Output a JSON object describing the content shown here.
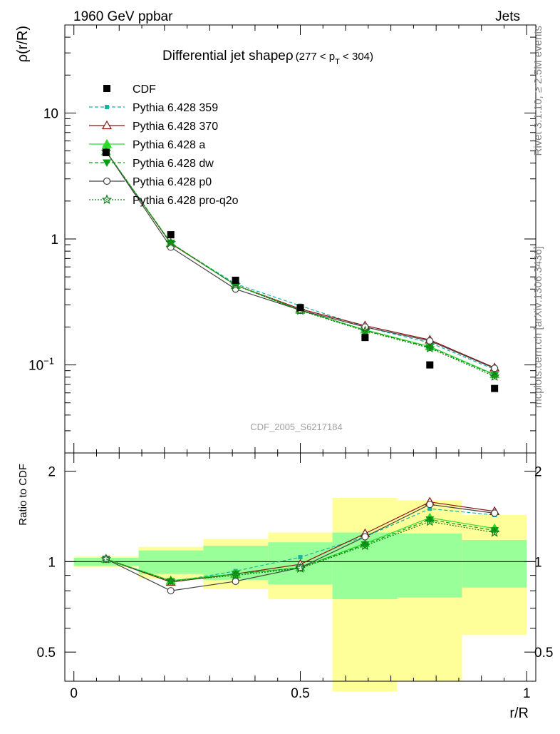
{
  "header": {
    "left": "1960 GeV ppbar",
    "right": "Jets"
  },
  "side_labels": {
    "rivet": "Rivet 3.1.10, ≥ 2.5M events",
    "mcplots": "mcplots.cern.ch [arXiv:1306.3436]"
  },
  "chart_data": {
    "type": "line",
    "title": "Differential jet shapeρ",
    "title_range": "(277 < p",
    "title_sub": "T",
    "title_range_end": " < 304)",
    "watermark": "CDF_2005_S6217184",
    "xlabel": "r/R",
    "ylabel_top": "ρ(r/R)",
    "ylabel_bottom": "Ratio to CDF",
    "xlim": [
      -0.02,
      1.02
    ],
    "ylim_top": [
      0.02,
      50
    ],
    "ylim_bottom": [
      0.4,
      2.3
    ],
    "yscale": "log",
    "x_ticks": [
      {
        "v": 0,
        "label": "0"
      },
      {
        "v": 0.5,
        "label": "0.5"
      },
      {
        "v": 1,
        "label": "1"
      }
    ],
    "y_ticks_top": [
      {
        "v": 10,
        "label": "10"
      },
      {
        "v": 1,
        "label": "1"
      },
      {
        "v": 0.1,
        "label": "10",
        "sup": "−1"
      }
    ],
    "y_ticks_bottom": [
      {
        "v": 2,
        "label": "2"
      },
      {
        "v": 1,
        "label": "1"
      },
      {
        "v": 0.5,
        "label": "0.5"
      }
    ],
    "x": [
      0.071,
      0.214,
      0.357,
      0.5,
      0.643,
      0.786,
      0.929
    ],
    "bins": [
      [
        0.0,
        0.143
      ],
      [
        0.143,
        0.286
      ],
      [
        0.286,
        0.429
      ],
      [
        0.429,
        0.571
      ],
      [
        0.571,
        0.714
      ],
      [
        0.714,
        0.857
      ],
      [
        0.857,
        1.0
      ]
    ],
    "band_green": [
      [
        0.97,
        1.03
      ],
      [
        0.91,
        1.09
      ],
      [
        0.87,
        1.13
      ],
      [
        0.84,
        1.16
      ],
      [
        0.75,
        1.25
      ],
      [
        0.76,
        1.24
      ],
      [
        0.82,
        1.18
      ]
    ],
    "band_yellow": [
      [
        0.96,
        1.04
      ],
      [
        0.88,
        1.12
      ],
      [
        0.81,
        1.19
      ],
      [
        0.75,
        1.25
      ],
      [
        0.37,
        1.63
      ],
      [
        0.4,
        1.6
      ],
      [
        0.57,
        1.43
      ]
    ],
    "data": {
      "name": "CDF",
      "values": [
        4.85,
        1.08,
        0.47,
        0.285,
        0.165,
        0.1,
        0.065
      ]
    },
    "series": [
      {
        "name": "Pythia 6.428 359",
        "color": "#17b4a0",
        "dash": "5,3",
        "marker": "square",
        "values": [
          4.95,
          0.92,
          0.44,
          0.295,
          0.2,
          0.15,
          0.092
        ],
        "ratio": [
          1.02,
          0.855,
          0.93,
          1.035,
          1.21,
          1.5,
          1.43
        ]
      },
      {
        "name": "Pythia 6.428 370",
        "color": "#8b1010",
        "dash": "",
        "marker": "triangle-open",
        "values": [
          4.95,
          0.92,
          0.43,
          0.278,
          0.205,
          0.158,
          0.095
        ],
        "ratio": [
          1.02,
          0.855,
          0.91,
          0.98,
          1.24,
          1.58,
          1.47
        ]
      },
      {
        "name": "Pythia 6.428 a",
        "color": "#2bdc2b",
        "dash": "",
        "marker": "triangle",
        "values": [
          4.95,
          0.93,
          0.43,
          0.272,
          0.19,
          0.14,
          0.084
        ],
        "ratio": [
          1.02,
          0.865,
          0.91,
          0.955,
          1.15,
          1.4,
          1.29
        ]
      },
      {
        "name": "Pythia 6.428 dw",
        "color": "#0aa014",
        "dash": "5,3",
        "marker": "triangle-down",
        "values": [
          4.95,
          0.93,
          0.43,
          0.272,
          0.188,
          0.138,
          0.083
        ],
        "ratio": [
          1.02,
          0.86,
          0.91,
          0.955,
          1.14,
          1.38,
          1.27
        ]
      },
      {
        "name": "Pythia 6.428 p0",
        "color": "#444444",
        "dash": "",
        "marker": "circle-open",
        "values": [
          4.95,
          0.86,
          0.4,
          0.272,
          0.2,
          0.155,
          0.094
        ],
        "ratio": [
          1.02,
          0.8,
          0.86,
          0.955,
          1.21,
          1.55,
          1.45
        ]
      },
      {
        "name": "Pythia 6.428 pro-q2o",
        "color": "#157a1a",
        "dash": "2,2",
        "marker": "star",
        "values": [
          4.95,
          0.93,
          0.43,
          0.27,
          0.186,
          0.136,
          0.081
        ],
        "ratio": [
          1.02,
          0.86,
          0.9,
          0.95,
          1.13,
          1.36,
          1.25
        ]
      }
    ]
  }
}
